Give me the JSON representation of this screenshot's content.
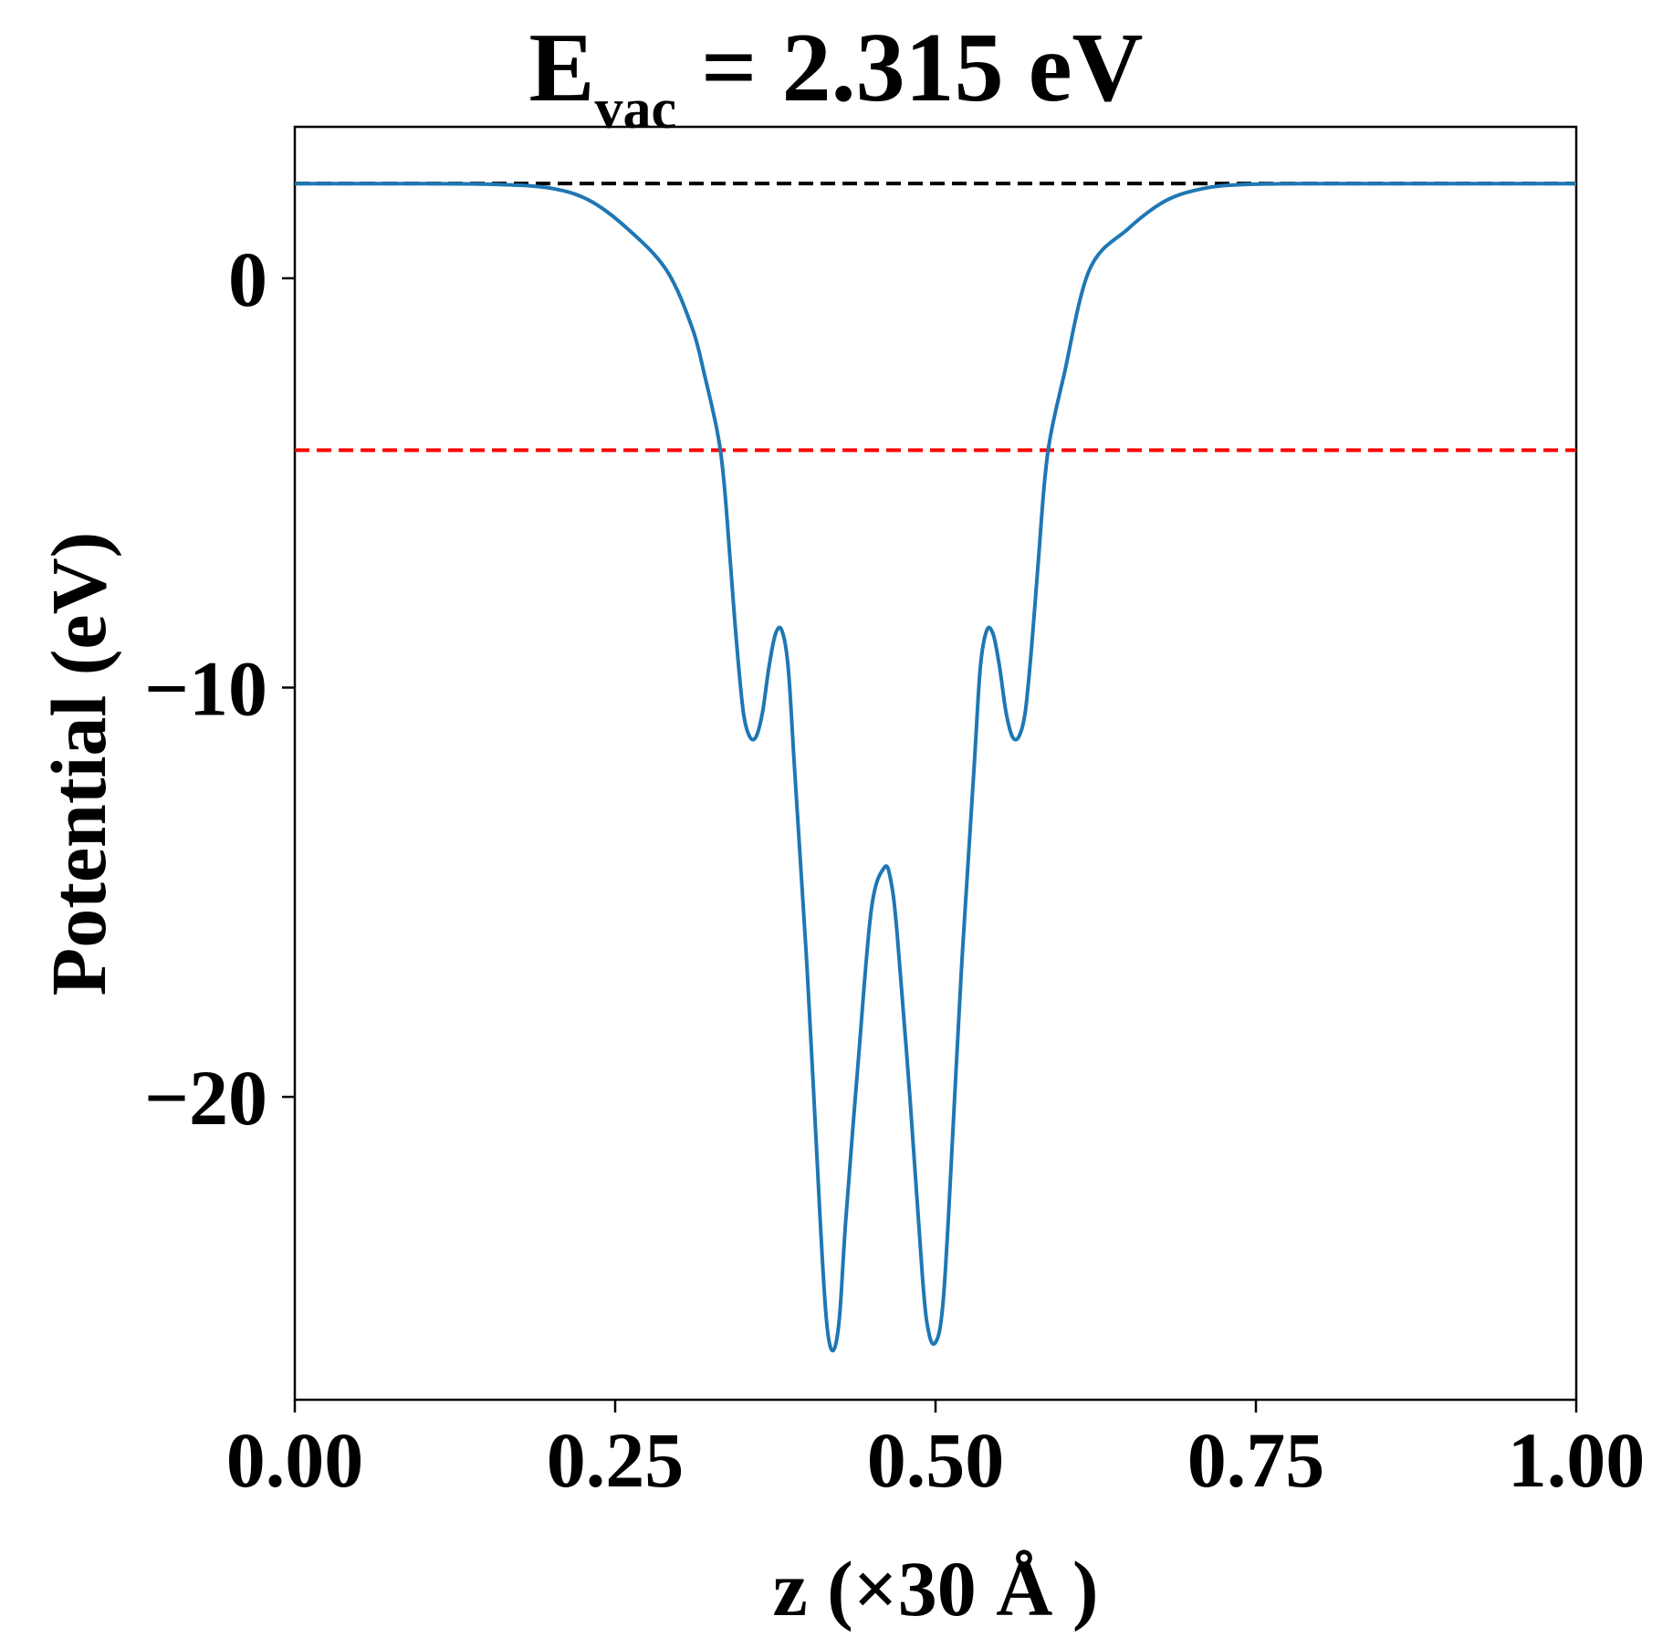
{
  "chart_data": {
    "type": "line",
    "title": {
      "main": "E",
      "subscript": "vac",
      "rest": " = 2.315 eV"
    },
    "xlabel": "z (×30 Å )",
    "ylabel": "Potential (eV)",
    "xlim": [
      0.0,
      1.0
    ],
    "ylim": [
      -27.4,
      3.7
    ],
    "grid": false,
    "x_ticks": [
      {
        "value": 0.0,
        "label": "0.00"
      },
      {
        "value": 0.25,
        "label": "0.25"
      },
      {
        "value": 0.5,
        "label": "0.50"
      },
      {
        "value": 0.75,
        "label": "0.75"
      },
      {
        "value": 1.0,
        "label": "1.00"
      }
    ],
    "y_ticks": [
      {
        "value": 0,
        "label": "0"
      },
      {
        "value": -10,
        "label": "−10"
      },
      {
        "value": -20,
        "label": "−20"
      }
    ],
    "reference_lines": [
      {
        "y": 2.315,
        "color": "#000000",
        "style": "dashed"
      },
      {
        "y": -4.2,
        "color": "#ff0000",
        "style": "dashed"
      }
    ],
    "series": [
      {
        "color": "#1f77b4",
        "x": [
          0.0,
          0.1,
          0.16,
          0.2,
          0.23,
          0.26,
          0.29,
          0.31,
          0.32,
          0.33,
          0.335,
          0.34,
          0.345,
          0.35,
          0.355,
          0.36,
          0.365,
          0.37,
          0.375,
          0.38,
          0.385,
          0.39,
          0.4,
          0.41,
          0.415,
          0.42,
          0.425,
          0.43,
          0.44,
          0.45,
          0.46,
          0.465,
          0.47,
          0.48,
          0.49,
          0.495,
          0.5,
          0.505,
          0.51,
          0.52,
          0.53,
          0.535,
          0.54,
          0.545,
          0.55,
          0.555,
          0.56,
          0.565,
          0.57,
          0.575,
          0.58,
          0.585,
          0.59,
          0.6,
          0.62,
          0.65,
          0.68,
          0.71,
          0.74,
          0.78,
          0.84,
          0.9,
          1.0
        ],
        "y": [
          2.31,
          2.31,
          2.29,
          2.2,
          1.9,
          1.2,
          0.2,
          -1.2,
          -2.4,
          -3.8,
          -5.0,
          -7.0,
          -9.0,
          -10.6,
          -11.2,
          -11.2,
          -10.6,
          -9.5,
          -8.7,
          -8.6,
          -9.5,
          -12.0,
          -17.0,
          -23.0,
          -25.5,
          -26.2,
          -25.4,
          -23.0,
          -19.0,
          -15.4,
          -14.4,
          -14.7,
          -16.0,
          -20.0,
          -24.5,
          -25.8,
          -26.0,
          -25.3,
          -23.0,
          -17.0,
          -12.0,
          -9.5,
          -8.6,
          -8.7,
          -9.5,
          -10.6,
          -11.2,
          -11.2,
          -10.6,
          -9.0,
          -7.0,
          -5.0,
          -3.8,
          -2.4,
          0.2,
          1.2,
          1.9,
          2.2,
          2.29,
          2.31,
          2.31,
          2.31,
          2.31
        ]
      }
    ]
  }
}
